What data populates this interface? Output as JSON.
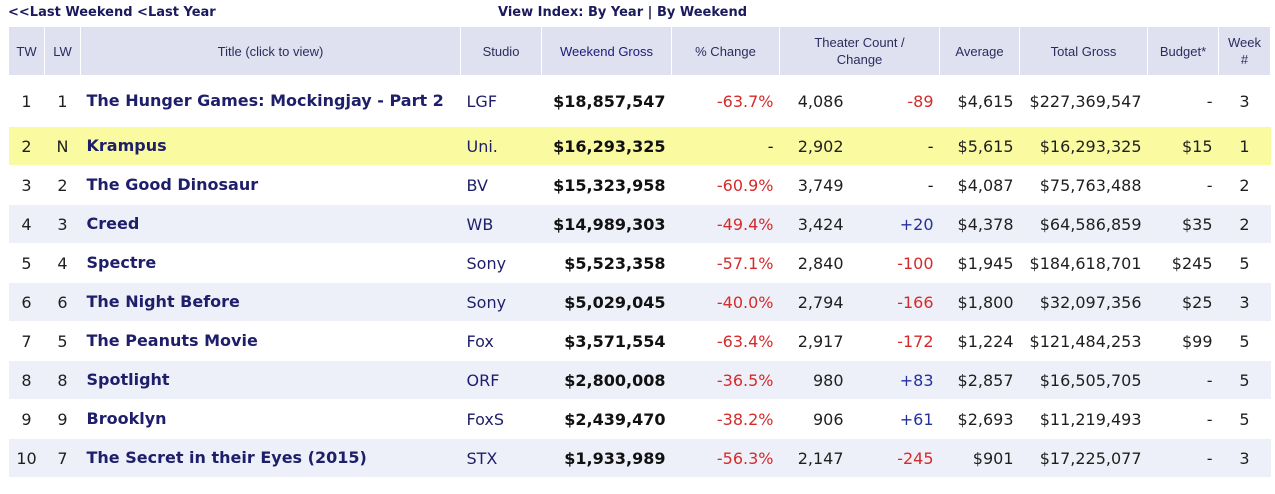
{
  "nav": {
    "last_weekend": "<<Last Weekend",
    "last_year": "<Last Year",
    "view_index_label": "View Index:",
    "by_year": "By Year",
    "separator": "|",
    "by_weekend": "By Weekend"
  },
  "headers": {
    "tw": "TW",
    "lw": "LW",
    "title": "Title (click to view)",
    "studio": "Studio",
    "weekend_gross": "Weekend Gross",
    "pct_change": "% Change",
    "theater_count": "Theater Count /",
    "theater_change": "Change",
    "average": "Average",
    "total_gross": "Total Gross",
    "budget": "Budget*",
    "week": "Week",
    "week_hash": "#"
  },
  "rows": [
    {
      "tw": "1",
      "lw": "1",
      "title": "The Hunger Games: Mockingjay - Part 2",
      "studio": "LGF",
      "gross": "$18,857,547",
      "pct": "-63.7%",
      "theaters": "4,086",
      "change": "-89",
      "average": "$4,615",
      "total": "$227,369,547",
      "budget": "-",
      "week": "3"
    },
    {
      "tw": "2",
      "lw": "N",
      "title": "Krampus",
      "studio": "Uni.",
      "gross": "$16,293,325",
      "pct": "-",
      "theaters": "2,902",
      "change": "-",
      "average": "$5,615",
      "total": "$16,293,325",
      "budget": "$15",
      "week": "1"
    },
    {
      "tw": "3",
      "lw": "2",
      "title": "The Good Dinosaur",
      "studio": "BV",
      "gross": "$15,323,958",
      "pct": "-60.9%",
      "theaters": "3,749",
      "change": "-",
      "average": "$4,087",
      "total": "$75,763,488",
      "budget": "-",
      "week": "2"
    },
    {
      "tw": "4",
      "lw": "3",
      "title": "Creed",
      "studio": "WB",
      "gross": "$14,989,303",
      "pct": "-49.4%",
      "theaters": "3,424",
      "change": "+20",
      "average": "$4,378",
      "total": "$64,586,859",
      "budget": "$35",
      "week": "2"
    },
    {
      "tw": "5",
      "lw": "4",
      "title": "Spectre",
      "studio": "Sony",
      "gross": "$5,523,358",
      "pct": "-57.1%",
      "theaters": "2,840",
      "change": "-100",
      "average": "$1,945",
      "total": "$184,618,701",
      "budget": "$245",
      "week": "5"
    },
    {
      "tw": "6",
      "lw": "6",
      "title": "The Night Before",
      "studio": "Sony",
      "gross": "$5,029,045",
      "pct": "-40.0%",
      "theaters": "2,794",
      "change": "-166",
      "average": "$1,800",
      "total": "$32,097,356",
      "budget": "$25",
      "week": "3"
    },
    {
      "tw": "7",
      "lw": "5",
      "title": "The Peanuts Movie",
      "studio": "Fox",
      "gross": "$3,571,554",
      "pct": "-63.4%",
      "theaters": "2,917",
      "change": "-172",
      "average": "$1,224",
      "total": "$121,484,253",
      "budget": "$99",
      "week": "5"
    },
    {
      "tw": "8",
      "lw": "8",
      "title": "Spotlight",
      "studio": "ORF",
      "gross": "$2,800,008",
      "pct": "-36.5%",
      "theaters": "980",
      "change": "+83",
      "average": "$2,857",
      "total": "$16,505,705",
      "budget": "-",
      "week": "5"
    },
    {
      "tw": "9",
      "lw": "9",
      "title": "Brooklyn",
      "studio": "FoxS",
      "gross": "$2,439,470",
      "pct": "-38.2%",
      "theaters": "906",
      "change": "+61",
      "average": "$2,693",
      "total": "$11,219,493",
      "budget": "-",
      "week": "5"
    },
    {
      "tw": "10",
      "lw": "7",
      "title": "The Secret in their Eyes (2015)",
      "studio": "STX",
      "gross": "$1,933,989",
      "pct": "-56.3%",
      "theaters": "2,147",
      "change": "-245",
      "average": "$901",
      "total": "$17,225,077",
      "budget": "-",
      "week": "3"
    }
  ]
}
